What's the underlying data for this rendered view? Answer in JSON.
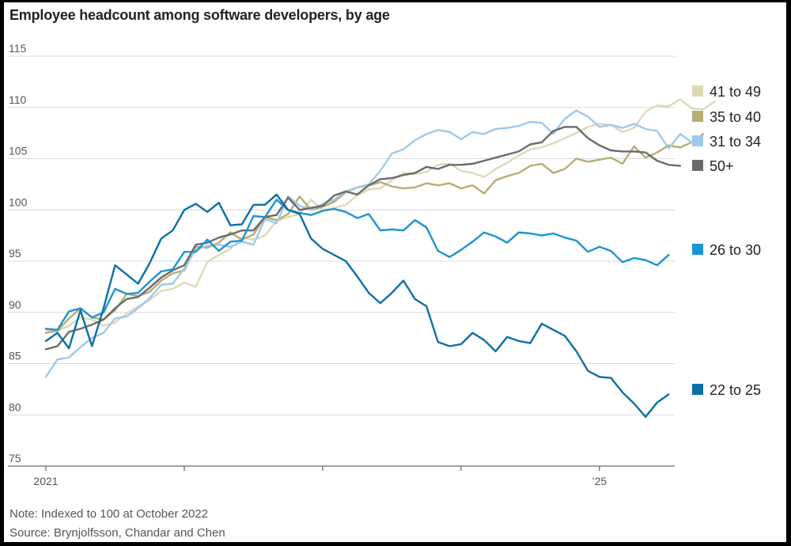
{
  "chart_data": {
    "type": "line",
    "title": "Employee headcount among software developers, by age",
    "xlabel": "",
    "ylabel": "",
    "ylim": [
      75,
      115
    ],
    "yticks": [
      75,
      80,
      85,
      90,
      95,
      100,
      105,
      110,
      115
    ],
    "x_start": "2021-01",
    "x_end": "2025-06",
    "x_tick_labels": [
      {
        "month_index": 0,
        "label": "2021"
      },
      {
        "month_index": 12,
        "label": ""
      },
      {
        "month_index": 24,
        "label": ""
      },
      {
        "month_index": 36,
        "label": ""
      },
      {
        "month_index": 48,
        "label": "’25"
      }
    ],
    "grid": true,
    "legend_position": "right",
    "series": [
      {
        "name": "41 to 49",
        "color": "#ddd9b8",
        "values": [
          88.3,
          88.2,
          88.7,
          89.5,
          89.3,
          88.7,
          89.0,
          89.9,
          90.6,
          91.2,
          92.1,
          92.3,
          92.9,
          92.5,
          94.9,
          95.6,
          96.2,
          97.3,
          97.1,
          97.5,
          98.9,
          99.3,
          99.6,
          101.0,
          100.0,
          100.2,
          100.5,
          101.4,
          102.0,
          102.1,
          102.9,
          103.6,
          103.5,
          103.7,
          104.4,
          104.5,
          103.8,
          103.6,
          103.2,
          104.0,
          104.6,
          105.3,
          105.9,
          106.1,
          106.5,
          107.0,
          107.5,
          108.1,
          108.4,
          108.3,
          107.6,
          108.0,
          109.6,
          110.2,
          110.1,
          110.8,
          109.9,
          109.8,
          110.6
        ]
      },
      {
        "name": "35 to 40",
        "color": "#b8ad72",
        "values": [
          88.0,
          88.2,
          89.4,
          90.4,
          89.5,
          89.3,
          90.2,
          91.8,
          91.6,
          92.0,
          93.1,
          93.8,
          94.1,
          96.4,
          96.3,
          96.8,
          97.8,
          97.1,
          97.6,
          99.3,
          99.0,
          99.6,
          101.3,
          100.0,
          100.3,
          100.8,
          101.7,
          102.2,
          102.4,
          102.7,
          102.3,
          102.1,
          102.2,
          102.6,
          102.4,
          102.6,
          102.1,
          102.4,
          101.6,
          102.9,
          103.3,
          103.6,
          104.3,
          104.5,
          103.6,
          104.0,
          105.0,
          104.7,
          104.9,
          105.1,
          104.5,
          106.2,
          105.1,
          105.6,
          106.3,
          106.1,
          106.6,
          107.4
        ]
      },
      {
        "name": "31 to 34",
        "color": "#9ec9eb",
        "values": [
          83.7,
          85.4,
          85.6,
          86.6,
          87.5,
          88.0,
          89.4,
          89.6,
          90.4,
          91.4,
          92.7,
          92.8,
          94.3,
          96.1,
          96.5,
          96.6,
          96.4,
          96.9,
          96.6,
          99.1,
          98.7,
          101.3,
          100.4,
          100.0,
          100.6,
          101.0,
          101.8,
          102.2,
          102.5,
          103.8,
          105.5,
          105.9,
          106.8,
          107.4,
          107.8,
          107.6,
          106.9,
          107.6,
          107.4,
          107.9,
          108.0,
          108.2,
          108.6,
          108.5,
          107.4,
          108.9,
          109.7,
          109.1,
          108.1,
          108.3,
          108.0,
          108.4,
          107.9,
          107.7,
          106.0,
          107.4,
          106.6
        ]
      },
      {
        "name": "50+",
        "color": "#6a6a6a",
        "values": [
          86.4,
          86.7,
          88.1,
          88.4,
          88.8,
          89.3,
          90.4,
          91.3,
          91.5,
          92.4,
          93.4,
          94.1,
          94.6,
          96.6,
          96.8,
          97.3,
          97.6,
          98.0,
          98.0,
          99.3,
          99.5,
          101.2,
          100.0,
          100.2,
          100.4,
          101.4,
          101.8,
          101.5,
          102.4,
          103.0,
          103.1,
          103.4,
          103.6,
          104.2,
          104.0,
          104.4,
          104.4,
          104.5,
          104.8,
          105.1,
          105.4,
          105.7,
          106.4,
          106.6,
          107.7,
          108.1,
          108.1,
          107.0,
          106.3,
          105.8,
          105.7,
          105.7,
          105.6,
          104.8,
          104.4,
          104.3
        ]
      },
      {
        "name": "26 to 30",
        "color": "#1a94d4",
        "values": [
          88.4,
          88.3,
          90.1,
          90.4,
          89.5,
          90.0,
          92.3,
          91.8,
          91.9,
          93.0,
          94.0,
          94.2,
          95.9,
          95.9,
          97.1,
          96.0,
          96.9,
          97.0,
          99.4,
          99.3,
          101.0,
          100.0,
          99.7,
          99.5,
          99.9,
          100.1,
          99.8,
          99.2,
          99.6,
          98.0,
          98.1,
          98.0,
          99.0,
          98.3,
          96.0,
          95.4,
          96.1,
          96.9,
          97.8,
          97.4,
          96.8,
          97.8,
          97.7,
          97.5,
          97.7,
          97.3,
          97.0,
          95.9,
          96.4,
          96.0,
          94.9,
          95.3,
          95.1,
          94.6,
          95.6
        ]
      },
      {
        "name": "22 to 25",
        "color": "#0b6fa8",
        "values": [
          87.2,
          88.0,
          86.5,
          90.2,
          86.7,
          90.4,
          94.6,
          93.7,
          92.8,
          94.8,
          97.2,
          98.0,
          100.0,
          100.6,
          99.8,
          100.7,
          98.5,
          98.6,
          100.5,
          100.5,
          101.5,
          100.0,
          99.6,
          97.2,
          96.2,
          95.6,
          95.0,
          93.5,
          91.9,
          90.9,
          91.9,
          93.1,
          91.3,
          90.6,
          87.1,
          86.7,
          86.9,
          88.0,
          87.3,
          86.2,
          87.6,
          87.2,
          87.0,
          88.9,
          88.3,
          87.7,
          86.2,
          84.3,
          83.7,
          83.6,
          82.2,
          81.1,
          79.8,
          81.2,
          82.0
        ]
      }
    ]
  },
  "legend": [
    {
      "label": "41 to 49",
      "color": "#ddd9b8"
    },
    {
      "label": "35 to 40",
      "color": "#b8ad72"
    },
    {
      "label": "31 to 34",
      "color": "#9ec9eb"
    },
    {
      "label": "50+",
      "color": "#6a6a6a"
    },
    {
      "label": "26 to 30",
      "color": "#1a94d4"
    },
    {
      "label": "22 to 25",
      "color": "#0b6fa8"
    }
  ],
  "notes": {
    "note": "Note: Indexed to 100 at October 2022",
    "source": "Source: Brynjolfsson, Chandar and Chen"
  }
}
